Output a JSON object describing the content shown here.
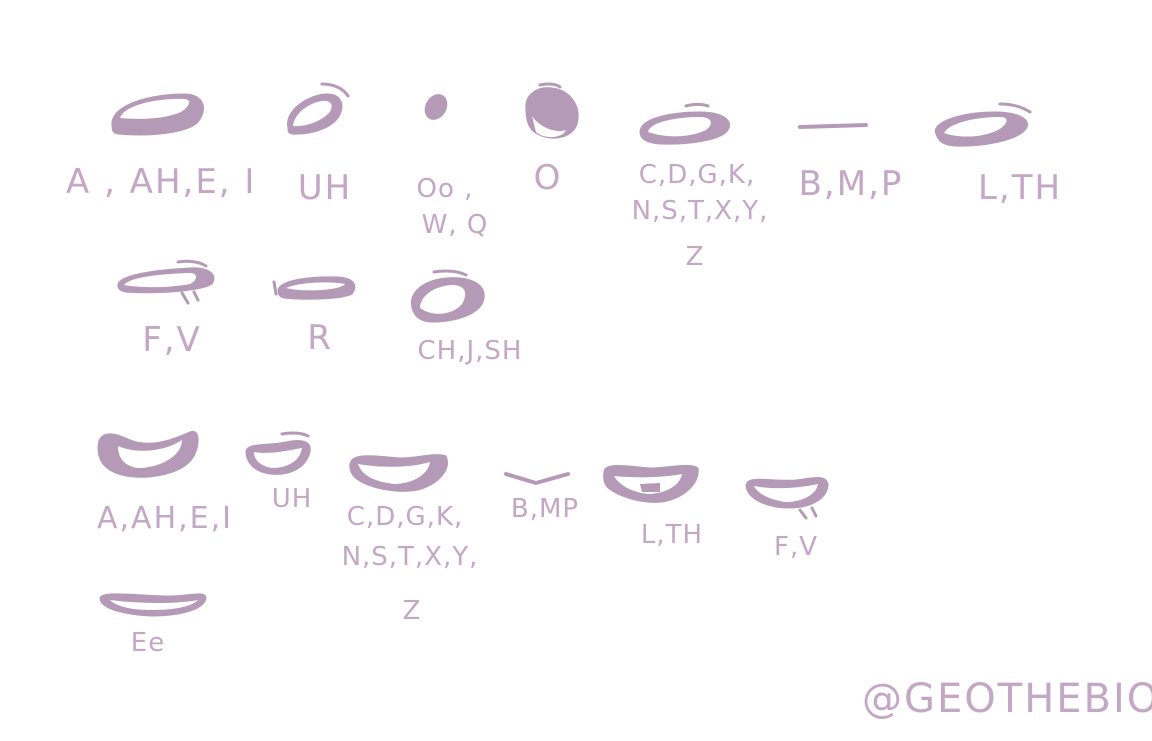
{
  "colors": {
    "fill": "#b49ab6",
    "stroke": "#b49ab6",
    "light": "#ffffff",
    "text": "#c3a7c5"
  },
  "set1": {
    "a_ah_e_i": "A , AH,E, I",
    "uh": "UH",
    "oo_line1": "Oo ,",
    "oo_line2": "W, Q",
    "o": "O",
    "cdgk_line1": "C,D,G,K,",
    "cdgk_line2": "N,S,T,X,Y,",
    "cdgk_line3": "Z",
    "bmp": "B,M,P",
    "lth": "L,TH",
    "fv": "F,V",
    "r": "R",
    "chjsh": "CH,J,SH"
  },
  "set2": {
    "a_ah_e_i": "A,AH,E,I",
    "uh": "UH",
    "cdgk_line1": "C,D,G,K,",
    "cdgk_line2": "N,S,T,X,Y,",
    "cdgk_line3": "Z",
    "bmp": "B,MP",
    "lth": "L,TH",
    "fv": "F,V",
    "ee": "Ee"
  },
  "credit": "@GEOTHEBIO"
}
